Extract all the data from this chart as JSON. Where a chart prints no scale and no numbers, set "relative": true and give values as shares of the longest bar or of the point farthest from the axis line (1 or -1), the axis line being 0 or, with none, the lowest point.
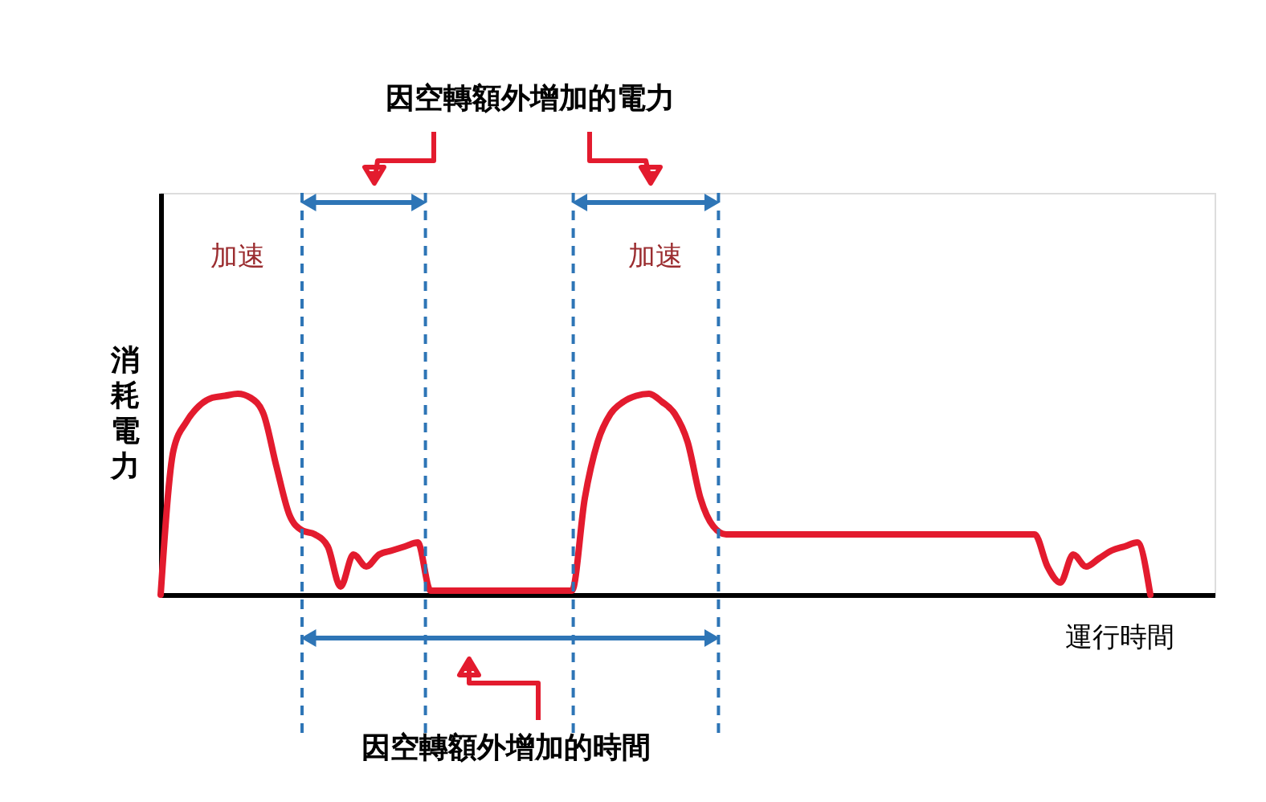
{
  "chart_data": {
    "type": "line",
    "relative": true,
    "title": "因空轉額外增加的電力",
    "xlabel": "運行時間",
    "ylabel": "消耗電力",
    "grid": false,
    "line_style": "solid",
    "marker": "none",
    "categories": [
      null,
      null,
      null,
      null,
      null,
      null,
      null,
      null,
      null,
      null,
      null,
      null,
      null,
      null,
      null,
      null,
      null,
      null,
      null,
      null,
      null,
      null,
      null,
      null,
      null,
      null,
      null,
      null,
      null,
      null,
      null,
      null,
      null,
      null,
      null,
      null,
      null,
      null,
      null,
      null,
      null,
      null,
      null,
      null,
      null,
      null,
      null,
      null,
      null,
      null,
      null,
      null,
      null,
      null,
      null,
      null,
      null,
      null,
      null,
      null,
      null,
      null,
      null,
      null,
      null,
      null,
      null,
      null,
      null,
      null,
      null,
      null,
      null,
      null,
      null,
      null,
      null,
      null,
      null,
      null,
      null,
      null,
      null
    ],
    "series": [
      {
        "color": "#e31b2e",
        "values": [
          0,
          0.72,
          0.86,
          0.94,
          0.98,
          0.99,
          1.0,
          0.98,
          0.9,
          0.64,
          0.4,
          0.32,
          0.3,
          0.24,
          0.04,
          0.2,
          0.14,
          0.2,
          0.22,
          0.24,
          0.26,
          0.02,
          0.02,
          0.02,
          0.02,
          0.02,
          0.02,
          0.02,
          0.02,
          0.02,
          0.02,
          0.02,
          0.02,
          0.48,
          0.76,
          0.9,
          0.96,
          0.99,
          1.0,
          0.96,
          0.9,
          0.76,
          0.48,
          0.34,
          0.3,
          0.3,
          0.3,
          0.3,
          0.3,
          0.3,
          0.3,
          0.3,
          0.3,
          0.3,
          0.3,
          0.3,
          0.3,
          0.3,
          0.3,
          0.3,
          0.3,
          0.3,
          0.3,
          0.3,
          0.3,
          0.3,
          0.3,
          0.3,
          0.3,
          0.14,
          0.06,
          0.2,
          0.14,
          0.18,
          0.22,
          0.24,
          0.26,
          0,
          null,
          null,
          null,
          null,
          null
        ]
      }
    ],
    "annotations": [
      "因空轉額外增加的時間",
      "加速",
      "加速"
    ]
  }
}
